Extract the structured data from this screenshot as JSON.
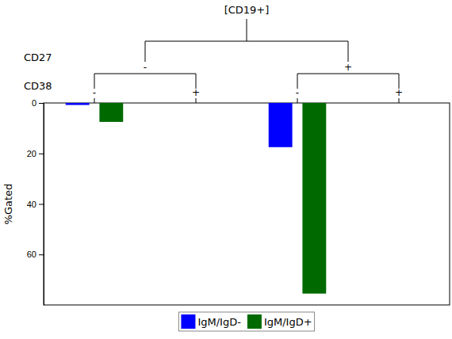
{
  "chart_data": {
    "type": "bar",
    "title": "[CD19+]",
    "y_label": "%Gated",
    "x_groups": {
      "label": "CD27",
      "categories": [
        "-",
        "+"
      ]
    },
    "x_label": "CD38",
    "categories": [
      "-",
      "+",
      "-",
      "+"
    ],
    "series": [
      {
        "name": "IgM/IgD-",
        "color": "#0000ff",
        "values": [
          0.8,
          0,
          17.5,
          0
        ]
      },
      {
        "name": "IgM/IgD+",
        "color": "#006a00",
        "values": [
          7.5,
          0,
          75.5,
          0
        ]
      }
    ],
    "ylim": [
      0,
      80
    ],
    "yticks": [
      0,
      20,
      40,
      60
    ],
    "legend": "bottom"
  }
}
